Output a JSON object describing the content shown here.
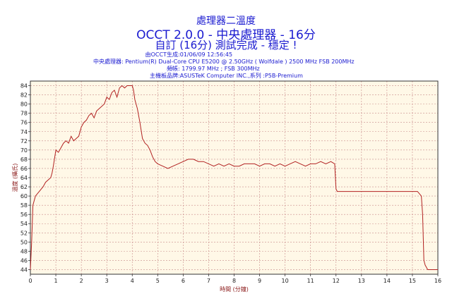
{
  "header": {
    "subtitle_cn": "處理器二溫度",
    "title": "OCCT 2.0.0 - 中央處理器 - 16分",
    "status": "自訂 (16分) 測試完成 - 穩定 !"
  },
  "info": [
    {
      "key": "由OCCT生成",
      "value": ":01/06/09 12:56:45"
    },
    {
      "key": "中央處理器",
      "value": ": Pentium(R) Dual-Core CPU E5200 @ 2.50GHz ( Wolfdale ) 2500 MHz FSB 200MHz"
    },
    {
      "key": "頻帳",
      "value": ": 1799.97 MHz ; FSB 300MHz"
    },
    {
      "key": "主機板品牌",
      "value": ":ASUSTeK Computer INC.,系列 :P5B-Premium"
    }
  ],
  "colors": {
    "plot_background": "#fff8e7",
    "line": "#b22222",
    "grid": "#c88a8a",
    "header_text": "#1a1ad0",
    "axis_label": "#8b1a1a"
  },
  "chart_data": {
    "type": "line",
    "xlabel": "時間 (分鐘)",
    "ylabel": "溫度 (攝氏)",
    "xlim": [
      0,
      16
    ],
    "ylim": [
      43,
      85
    ],
    "x_ticks": [
      0,
      1,
      2,
      3,
      4,
      5,
      6,
      7,
      8,
      9,
      10,
      11,
      12,
      13,
      14,
      15,
      16
    ],
    "y_ticks": [
      44,
      46,
      48,
      50,
      52,
      54,
      56,
      58,
      60,
      62,
      64,
      66,
      68,
      70,
      72,
      74,
      76,
      78,
      80,
      82,
      84
    ],
    "grid": true,
    "legend": "none",
    "series": [
      {
        "x": [
          0,
          0.05,
          0.1,
          0.2,
          0.35,
          0.5,
          0.6,
          0.7,
          0.8,
          0.85,
          0.9,
          1.0,
          1.1,
          1.2,
          1.3,
          1.4,
          1.5,
          1.6,
          1.7,
          1.8,
          1.9,
          2.0,
          2.1,
          2.2,
          2.3,
          2.4,
          2.5,
          2.6,
          2.7,
          2.8,
          2.9,
          3.0,
          3.1,
          3.2,
          3.3,
          3.4,
          3.5,
          3.6,
          3.7,
          3.8,
          3.9,
          4.0,
          4.05,
          4.1,
          4.2,
          4.3,
          4.4,
          4.5,
          4.6,
          4.7,
          4.8,
          4.9,
          5.0,
          5.2,
          5.4,
          5.6,
          5.8,
          6.0,
          6.2,
          6.4,
          6.6,
          6.8,
          7.0,
          7.2,
          7.4,
          7.6,
          7.8,
          8.0,
          8.2,
          8.4,
          8.6,
          8.8,
          9.0,
          9.2,
          9.4,
          9.6,
          9.8,
          10.0,
          10.2,
          10.4,
          10.6,
          10.8,
          11.0,
          11.2,
          11.4,
          11.6,
          11.8,
          11.95,
          12.0,
          12.05,
          12.2,
          12.5,
          13.0,
          13.5,
          14.0,
          14.5,
          15.0,
          15.2,
          15.35,
          15.4,
          15.45,
          15.5,
          15.6,
          15.8,
          16.0
        ],
        "y": [
          44,
          50,
          58,
          60,
          61,
          62,
          63,
          63.5,
          64,
          65,
          66.5,
          70,
          69.5,
          70.5,
          71.5,
          72,
          71.5,
          73,
          72,
          72.5,
          73,
          75,
          76,
          76.5,
          77.5,
          78,
          77,
          78.5,
          79,
          79.5,
          80,
          81.5,
          81,
          82.5,
          83,
          81.5,
          83.5,
          84,
          83.5,
          84,
          84,
          84,
          83,
          81,
          79,
          76,
          72.5,
          71.5,
          71,
          70,
          68.5,
          67.5,
          67,
          66.5,
          66,
          66.5,
          67,
          67.5,
          68,
          68,
          67.5,
          67.5,
          67,
          66.5,
          67,
          66.5,
          67,
          66.5,
          66.5,
          67,
          67,
          67,
          66.5,
          67,
          67,
          66.5,
          67,
          66.5,
          67,
          67.5,
          67,
          66.5,
          67,
          67,
          67.5,
          67,
          67.5,
          67,
          61.5,
          61,
          61,
          61,
          61,
          61,
          61,
          61,
          61,
          61,
          60,
          56,
          46,
          45,
          44,
          44,
          44
        ]
      }
    ]
  }
}
